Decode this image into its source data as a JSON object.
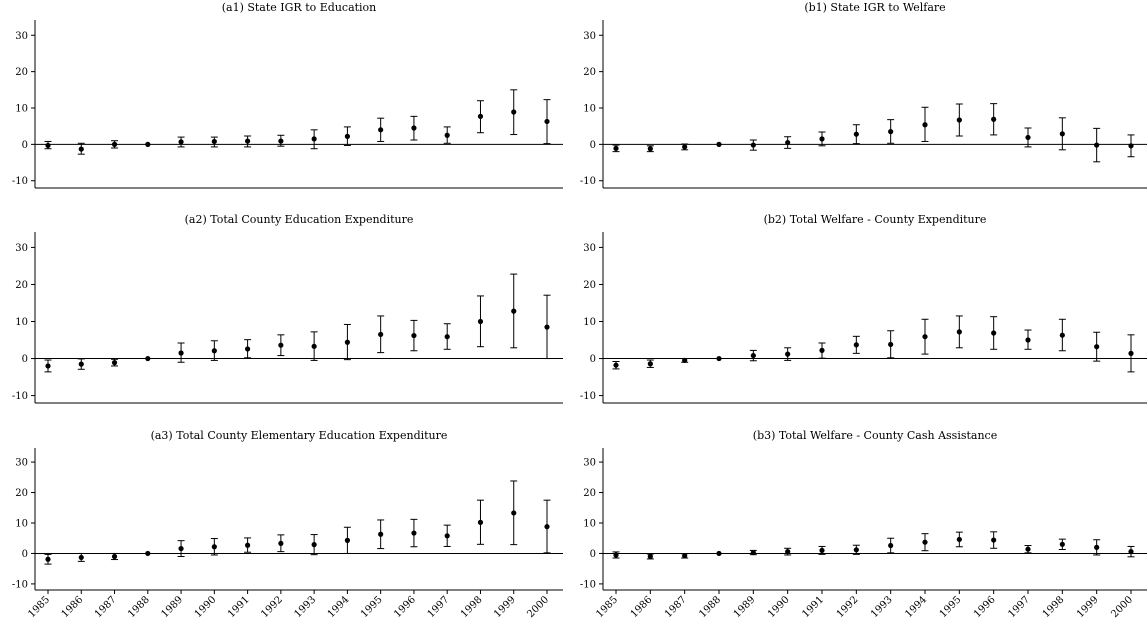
{
  "chart_data": [
    {
      "id": "a1",
      "type": "scatter",
      "title": "(a1) State IGR to Education",
      "x": [
        "1985",
        "1986",
        "1987",
        "1988",
        "1989",
        "1990",
        "1991",
        "1992",
        "1993",
        "1994",
        "1995",
        "1996",
        "1997",
        "1998",
        "1999",
        "2000"
      ],
      "y": [
        -0.3,
        -1.3,
        0,
        0,
        0.7,
        0.8,
        0.9,
        0.9,
        1.5,
        2.2,
        4,
        4.5,
        2.5,
        7.7,
        8.9,
        6.3
      ],
      "lo": [
        -1.2,
        -2.7,
        -1,
        0,
        -0.7,
        -0.7,
        -0.7,
        -0.5,
        -1.2,
        -0.3,
        0.8,
        1.2,
        0.3,
        3.2,
        2.7,
        0.2
      ],
      "hi": [
        0.8,
        0.3,
        1,
        0,
        2,
        2,
        2.3,
        2.5,
        4,
        4.8,
        7.2,
        7.7,
        4.8,
        12,
        15,
        12.3
      ],
      "yticks": [
        -10,
        0,
        10,
        20,
        30
      ],
      "ylim": [
        -12,
        32
      ]
    },
    {
      "id": "b1",
      "type": "scatter",
      "title": "(b1) State IGR to Welfare",
      "x": [
        "1985",
        "1986",
        "1987",
        "1988",
        "1989",
        "1990",
        "1991",
        "1992",
        "1993",
        "1994",
        "1995",
        "1996",
        "1997",
        "1998",
        "1999",
        "2000"
      ],
      "y": [
        -1.1,
        -1.2,
        -0.7,
        0,
        -0.2,
        0.5,
        1.5,
        2.8,
        3.5,
        5.4,
        6.7,
        6.9,
        1.9,
        2.9,
        -0.2,
        -0.4
      ],
      "lo": [
        -2,
        -2,
        -1.5,
        0,
        -1.6,
        -1.1,
        -0.4,
        0.2,
        0.3,
        0.8,
        2.3,
        2.6,
        -0.7,
        -1.5,
        -4.8,
        -3.4
      ],
      "hi": [
        -0.2,
        -0.4,
        0.1,
        0,
        1.2,
        2.1,
        3.4,
        5.4,
        6.8,
        10.2,
        11.1,
        11.2,
        4.5,
        7.3,
        4.4,
        2.6
      ],
      "yticks": [
        -10,
        0,
        10,
        20,
        30
      ],
      "ylim": [
        -12,
        32
      ]
    },
    {
      "id": "a2",
      "type": "scatter",
      "title": "(a2) Total County Education Expenditure",
      "x": [
        "1985",
        "1986",
        "1987",
        "1988",
        "1989",
        "1990",
        "1991",
        "1992",
        "1993",
        "1994",
        "1995",
        "1996",
        "1997",
        "1998",
        "1999",
        "2000"
      ],
      "y": [
        -2,
        -1.5,
        -1.1,
        0,
        1.5,
        2.1,
        2.6,
        3.6,
        3.3,
        4.4,
        6.5,
        6.2,
        5.9,
        10,
        12.8,
        8.5
      ],
      "lo": [
        -3.6,
        -2.9,
        -2,
        0,
        -1,
        -0.5,
        0.2,
        0.8,
        -0.5,
        -0.3,
        1.6,
        2.1,
        2.5,
        3.2,
        2.9,
        0
      ],
      "hi": [
        -0.4,
        -0.1,
        -0.2,
        0,
        4.2,
        4.8,
        5.1,
        6.4,
        7.2,
        9.2,
        11.5,
        10.3,
        9.4,
        16.9,
        22.8,
        17.1
      ],
      "yticks": [
        -10,
        0,
        10,
        20,
        30
      ],
      "ylim": [
        -12,
        32
      ]
    },
    {
      "id": "b2",
      "type": "scatter",
      "title": "(b2) Total Welfare - County Expenditure",
      "x": [
        "1985",
        "1986",
        "1987",
        "1988",
        "1989",
        "1990",
        "1991",
        "1992",
        "1993",
        "1994",
        "1995",
        "1996",
        "1997",
        "1998",
        "1999",
        "2000"
      ],
      "y": [
        -1.8,
        -1.4,
        -0.5,
        0,
        0.8,
        1.2,
        2.2,
        3.7,
        3.8,
        5.9,
        7.2,
        6.9,
        5,
        6.3,
        3.2,
        1.4
      ],
      "lo": [
        -2.8,
        -2.4,
        -1,
        0,
        -0.6,
        -0.5,
        0.1,
        1.4,
        0.2,
        1.2,
        2.9,
        2.5,
        2.5,
        2.1,
        -0.7,
        -3.6
      ],
      "hi": [
        -0.8,
        -0.4,
        0,
        0,
        2.2,
        2.9,
        4.2,
        6,
        7.5,
        10.6,
        11.5,
        11.3,
        7.7,
        10.6,
        7.1,
        6.4
      ],
      "yticks": [
        -10,
        0,
        10,
        20,
        30
      ],
      "ylim": [
        -12,
        32
      ]
    },
    {
      "id": "a3",
      "type": "scatter",
      "title": "(a3) Total County Elementary Education Expenditure",
      "x": [
        "1985",
        "1986",
        "1987",
        "1988",
        "1989",
        "1990",
        "1991",
        "1992",
        "1993",
        "1994",
        "1995",
        "1996",
        "1997",
        "1998",
        "1999",
        "2000"
      ],
      "y": [
        -1.9,
        -1.3,
        -1,
        0,
        1.6,
        2.2,
        2.7,
        3.3,
        2.9,
        4.3,
        6.3,
        6.7,
        5.8,
        10.2,
        13.3,
        8.8
      ],
      "lo": [
        -3.5,
        -2.6,
        -2,
        0,
        -1,
        -0.5,
        0.4,
        0.6,
        -0.4,
        0,
        1.6,
        2.2,
        2.3,
        3,
        2.9,
        0.2
      ],
      "hi": [
        -0.3,
        0,
        0,
        0,
        4.2,
        4.9,
        5.1,
        6.1,
        6.2,
        8.6,
        11,
        11.2,
        9.3,
        17.5,
        23.8,
        17.5
      ],
      "yticks": [
        -10,
        0,
        10,
        20,
        30
      ],
      "ylim": [
        -12,
        32
      ]
    },
    {
      "id": "b3",
      "type": "scatter",
      "title": "(b3) Total Welfare - County Cash Assistance",
      "x": [
        "1985",
        "1986",
        "1987",
        "1988",
        "1989",
        "1990",
        "1991",
        "1992",
        "1993",
        "1994",
        "1995",
        "1996",
        "1997",
        "1998",
        "1999",
        "2000"
      ],
      "y": [
        -0.5,
        -1,
        -0.8,
        0,
        0.3,
        0.6,
        1,
        1.2,
        2.6,
        3.7,
        4.6,
        4.4,
        1.4,
        3,
        2,
        0.6
      ],
      "lo": [
        -1.5,
        -1.8,
        -1.5,
        0,
        -0.4,
        -0.5,
        -0.3,
        -0.3,
        0.2,
        0.9,
        2.2,
        1.7,
        0.2,
        1.3,
        -0.5,
        -1.1
      ],
      "hi": [
        0.5,
        -0.2,
        -0.1,
        0,
        1,
        1.7,
        2.3,
        2.7,
        5,
        6.5,
        7,
        7.1,
        2.6,
        4.7,
        4.5,
        2.3
      ],
      "yticks": [
        -10,
        0,
        10,
        20,
        30
      ],
      "ylim": [
        -12,
        32
      ]
    }
  ]
}
